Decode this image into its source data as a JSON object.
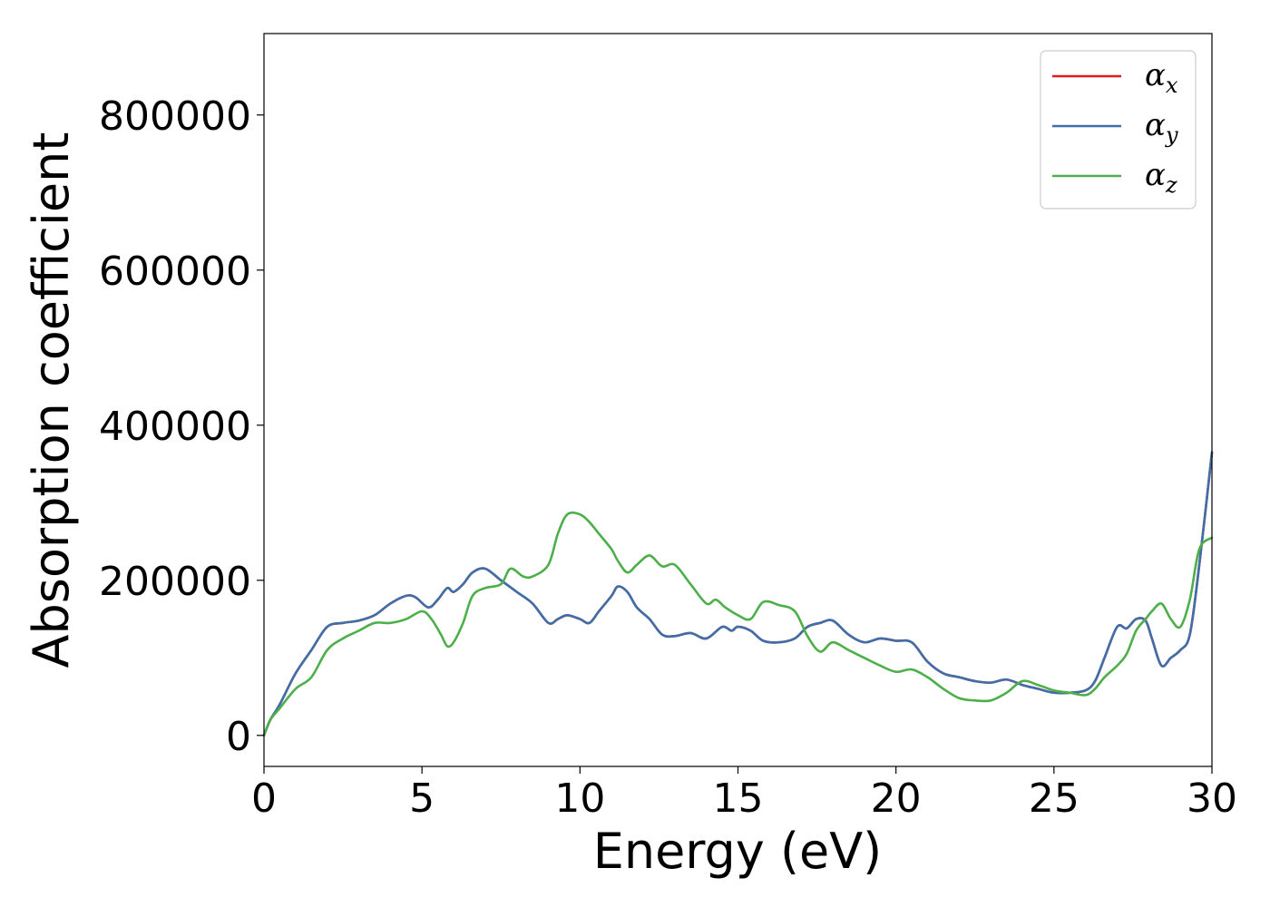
{
  "chart_data": {
    "type": "line",
    "xlabel": "Energy (eV)",
    "ylabel": "Absorption coefficient",
    "xlim": [
      0,
      30
    ],
    "ylim": [
      -40000,
      905000
    ],
    "xticks": [
      0,
      5,
      10,
      15,
      20,
      25,
      30
    ],
    "xtick_labels": [
      "0",
      "5",
      "10",
      "15",
      "20",
      "25",
      "30"
    ],
    "yticks": [
      0,
      200000,
      400000,
      600000,
      800000
    ],
    "ytick_labels": [
      "0",
      "200000",
      "400000",
      "600000",
      "800000"
    ],
    "grid": false,
    "legend_position": "top-right",
    "series": [
      {
        "name": "α",
        "subscript": "x",
        "color": "#e41a1c",
        "x": [
          0,
          0.2,
          0.5,
          1,
          1.5,
          2,
          2.5,
          3,
          3.5,
          4,
          4.5,
          4.8,
          5.2,
          5.5,
          5.8,
          6,
          6.3,
          6.6,
          7,
          7.5,
          8,
          8.5,
          9,
          9.3,
          9.6,
          10,
          10.3,
          10.6,
          11,
          11.2,
          11.5,
          11.8,
          12.2,
          12.6,
          13,
          13.5,
          14,
          14.5,
          14.8,
          15,
          15.4,
          15.8,
          16.3,
          16.8,
          17.2,
          17.6,
          18,
          18.5,
          19,
          19.5,
          20,
          20.5,
          21,
          21.5,
          22,
          22.5,
          23,
          23.5,
          24,
          24.5,
          25,
          25.5,
          26,
          26.3,
          26.6,
          27,
          27.3,
          27.6,
          27.9,
          28.1,
          28.4,
          28.7,
          29,
          29.3,
          29.6,
          30
        ],
        "y": [
          0,
          20000,
          40000,
          80000,
          110000,
          140000,
          145000,
          148000,
          155000,
          170000,
          180000,
          178000,
          165000,
          175000,
          190000,
          185000,
          195000,
          210000,
          215000,
          200000,
          185000,
          170000,
          145000,
          150000,
          155000,
          150000,
          145000,
          160000,
          180000,
          192000,
          185000,
          165000,
          150000,
          130000,
          128000,
          132000,
          125000,
          140000,
          135000,
          140000,
          135000,
          122000,
          120000,
          125000,
          140000,
          145000,
          148000,
          130000,
          120000,
          125000,
          122000,
          120000,
          95000,
          80000,
          75000,
          70000,
          68000,
          72000,
          65000,
          60000,
          55000,
          55000,
          58000,
          70000,
          100000,
          140000,
          138000,
          150000,
          148000,
          125000,
          90000,
          100000,
          110000,
          130000,
          220000,
          365000
        ]
      },
      {
        "name": "α",
        "subscript": "y",
        "color": "#3f6fa8",
        "x": [
          0,
          0.2,
          0.5,
          1,
          1.5,
          2,
          2.5,
          3,
          3.5,
          4,
          4.5,
          4.8,
          5.2,
          5.5,
          5.8,
          6,
          6.3,
          6.6,
          7,
          7.5,
          8,
          8.5,
          9,
          9.3,
          9.6,
          10,
          10.3,
          10.6,
          11,
          11.2,
          11.5,
          11.8,
          12.2,
          12.6,
          13,
          13.5,
          14,
          14.5,
          14.8,
          15,
          15.4,
          15.8,
          16.3,
          16.8,
          17.2,
          17.6,
          18,
          18.5,
          19,
          19.5,
          20,
          20.5,
          21,
          21.5,
          22,
          22.5,
          23,
          23.5,
          24,
          24.5,
          25,
          25.5,
          26,
          26.3,
          26.6,
          27,
          27.3,
          27.6,
          27.9,
          28.1,
          28.4,
          28.7,
          29,
          29.3,
          29.6,
          30
        ],
        "y": [
          0,
          20000,
          40000,
          80000,
          110000,
          140000,
          145000,
          148000,
          155000,
          170000,
          180000,
          178000,
          165000,
          175000,
          190000,
          185000,
          195000,
          210000,
          215000,
          200000,
          185000,
          170000,
          145000,
          150000,
          155000,
          150000,
          145000,
          160000,
          180000,
          192000,
          185000,
          165000,
          150000,
          130000,
          128000,
          132000,
          125000,
          140000,
          135000,
          140000,
          135000,
          122000,
          120000,
          125000,
          140000,
          145000,
          148000,
          130000,
          120000,
          125000,
          122000,
          120000,
          95000,
          80000,
          75000,
          70000,
          68000,
          72000,
          65000,
          60000,
          55000,
          55000,
          58000,
          70000,
          100000,
          140000,
          138000,
          150000,
          148000,
          125000,
          90000,
          100000,
          110000,
          130000,
          220000,
          365000
        ]
      },
      {
        "name": "α",
        "subscript": "z",
        "color": "#4daf4a",
        "x": [
          0,
          0.2,
          0.5,
          1,
          1.5,
          2,
          2.5,
          3,
          3.5,
          4,
          4.5,
          5,
          5.3,
          5.6,
          5.8,
          6,
          6.3,
          6.6,
          7,
          7.5,
          7.8,
          8.2,
          8.5,
          9,
          9.3,
          9.6,
          10,
          10.3,
          10.6,
          11,
          11.2,
          11.5,
          11.8,
          12.2,
          12.6,
          13,
          13.5,
          14,
          14.3,
          14.6,
          15,
          15.4,
          15.8,
          16.3,
          16.8,
          17.2,
          17.6,
          18,
          18.5,
          19,
          19.5,
          20,
          20.5,
          21,
          21.5,
          22,
          22.5,
          23,
          23.5,
          24,
          24.5,
          25,
          25.5,
          26,
          26.3,
          26.6,
          27,
          27.3,
          27.6,
          27.9,
          28.1,
          28.4,
          28.7,
          29,
          29.3,
          29.6,
          30
        ],
        "y": [
          0,
          20000,
          35000,
          60000,
          75000,
          110000,
          125000,
          135000,
          145000,
          145000,
          150000,
          160000,
          150000,
          130000,
          115000,
          120000,
          145000,
          180000,
          190000,
          195000,
          215000,
          205000,
          205000,
          220000,
          260000,
          285000,
          285000,
          275000,
          260000,
          240000,
          225000,
          210000,
          220000,
          232000,
          218000,
          220000,
          195000,
          170000,
          175000,
          165000,
          155000,
          150000,
          172000,
          168000,
          160000,
          128000,
          108000,
          120000,
          110000,
          100000,
          90000,
          82000,
          85000,
          75000,
          60000,
          48000,
          45000,
          45000,
          55000,
          70000,
          65000,
          58000,
          55000,
          52000,
          60000,
          75000,
          90000,
          105000,
          135000,
          150000,
          160000,
          170000,
          150000,
          140000,
          175000,
          240000,
          255000
        ]
      }
    ]
  }
}
